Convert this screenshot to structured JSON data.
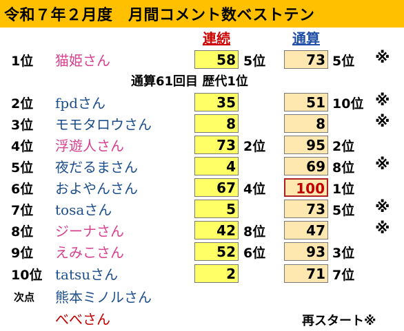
{
  "title": "令和７年２月度　月間コメント数ベストテン",
  "headers": {
    "streak": "連続",
    "total": "通算"
  },
  "milestone": "通算61回目 歴代1位",
  "rows": [
    {
      "rank": "1位",
      "name": "猫姫さん",
      "name_color": "pink",
      "streak": "58",
      "streak_rank": "5位",
      "total": "73",
      "total_rank": "5位",
      "mark": "※",
      "highlight": false
    },
    {
      "rank": "2位",
      "name": "fpdさん",
      "name_color": "blue",
      "streak": "35",
      "streak_rank": "",
      "total": "51",
      "total_rank": "10位",
      "mark": "※",
      "highlight": false
    },
    {
      "rank": "3位",
      "name": "モモタロウさん",
      "name_color": "blue",
      "streak": "8",
      "streak_rank": "",
      "total": "8",
      "total_rank": "",
      "mark": "※",
      "highlight": false
    },
    {
      "rank": "4位",
      "name": "浮遊人さん",
      "name_color": "pink",
      "streak": "73",
      "streak_rank": "2位",
      "total": "95",
      "total_rank": "2位",
      "mark": "",
      "highlight": false
    },
    {
      "rank": "5位",
      "name": "夜だるまさん",
      "name_color": "blue",
      "streak": "4",
      "streak_rank": "",
      "total": "69",
      "total_rank": "8位",
      "mark": "※",
      "highlight": false
    },
    {
      "rank": "6位",
      "name": "およやんさん",
      "name_color": "blue",
      "streak": "67",
      "streak_rank": "4位",
      "total": "100",
      "total_rank": "1位",
      "mark": "",
      "highlight": true
    },
    {
      "rank": "7位",
      "name": "tosaさん",
      "name_color": "blue",
      "streak": "5",
      "streak_rank": "",
      "total": "73",
      "total_rank": "5位",
      "mark": "※",
      "highlight": false
    },
    {
      "rank": "8位",
      "name": "ジーナさん",
      "name_color": "pink",
      "streak": "42",
      "streak_rank": "8位",
      "total": "47",
      "total_rank": "",
      "mark": "※",
      "highlight": false
    },
    {
      "rank": "9位",
      "name": "えみこさん",
      "name_color": "pink",
      "streak": "52",
      "streak_rank": "6位",
      "total": "93",
      "total_rank": "3位",
      "mark": "",
      "highlight": false
    },
    {
      "rank": "10位",
      "name": "tatsuさん",
      "name_color": "blue",
      "streak": "2",
      "streak_rank": "",
      "total": "71",
      "total_rank": "7位",
      "mark": "",
      "highlight": false
    }
  ],
  "next": [
    {
      "rank": "次点",
      "name": "熊本ミノルさん",
      "name_color": "blue"
    },
    {
      "rank": "",
      "name": "べべさん",
      "name_color": "red"
    }
  ],
  "restart_note": "再スタート※"
}
